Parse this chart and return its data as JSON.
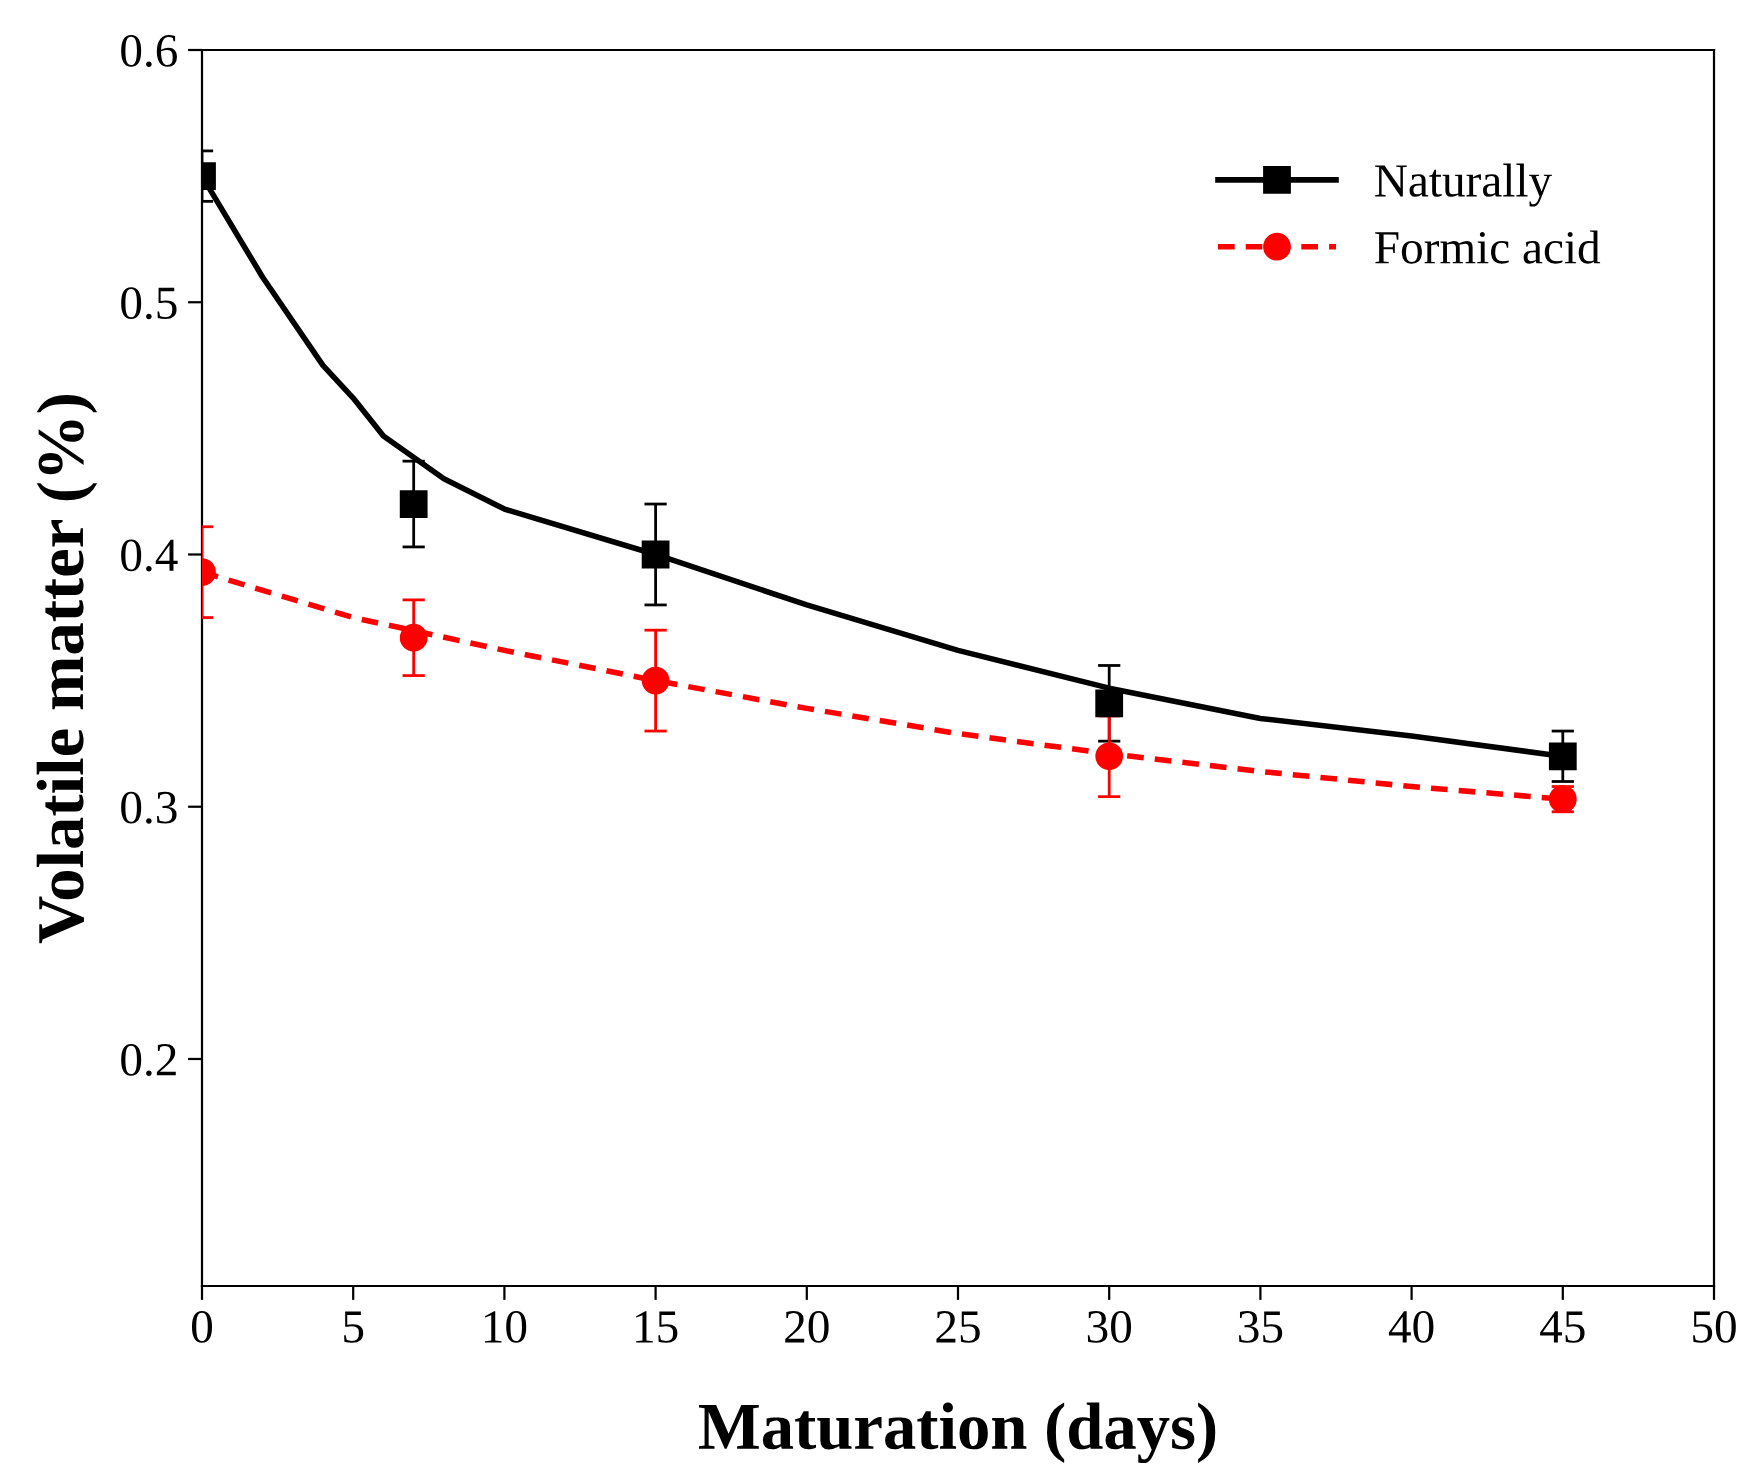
{
  "chart_data": {
    "type": "scatter",
    "xlabel": "Maturation (days)",
    "ylabel": "Volatile matter (%)",
    "xlim": [
      0,
      50
    ],
    "xticks": [
      0,
      5,
      10,
      15,
      20,
      25,
      30,
      35,
      40,
      45,
      50
    ],
    "ylim": [
      0.11,
      0.6
    ],
    "yticks": [
      0.2,
      0.3,
      0.4,
      0.5,
      0.6
    ],
    "grid": false,
    "legend": "top right",
    "series": [
      {
        "name": "Naturally",
        "color": "#000000",
        "marker": "square",
        "x": [
          0,
          7,
          15,
          30,
          45
        ],
        "values": [
          0.55,
          0.42,
          0.4,
          0.341,
          0.32
        ],
        "errors": [
          0.01,
          0.017,
          0.02,
          0.015,
          0.01
        ]
      },
      {
        "type": "line",
        "color": "#000000",
        "line_style": "solid",
        "x": [
          0,
          2,
          4,
          5,
          6,
          8,
          10,
          15,
          20,
          25,
          30,
          35,
          40,
          45
        ],
        "values": [
          0.55,
          0.51,
          0.475,
          0.462,
          0.447,
          0.43,
          0.418,
          0.4,
          0.38,
          0.362,
          0.347,
          0.335,
          0.328,
          0.32
        ]
      },
      {
        "name": "Formic acid",
        "color": "#ff0000",
        "marker": "circle",
        "x": [
          0,
          7,
          15,
          30,
          45
        ],
        "values": [
          0.393,
          0.367,
          0.35,
          0.32,
          0.303
        ],
        "errors": [
          0.018,
          0.015,
          0.02,
          0.016,
          0.005
        ]
      },
      {
        "type": "line",
        "color": "#ff0000",
        "line_style": "dashed",
        "x": [
          0,
          5,
          10,
          15,
          20,
          25,
          30,
          35,
          40,
          45
        ],
        "values": [
          0.393,
          0.375,
          0.362,
          0.35,
          0.339,
          0.329,
          0.321,
          0.314,
          0.308,
          0.303
        ]
      }
    ]
  }
}
